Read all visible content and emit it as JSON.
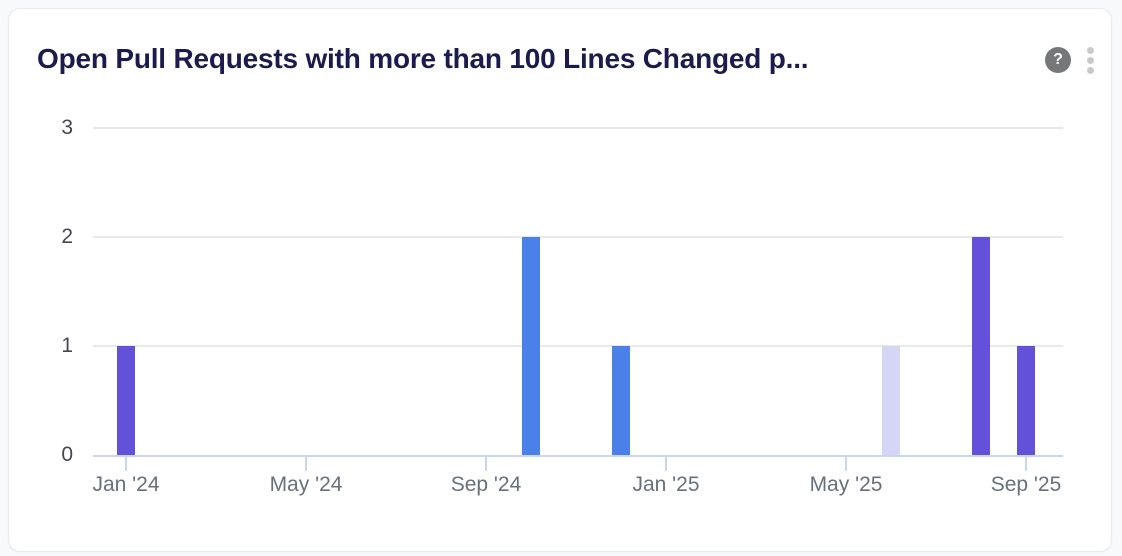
{
  "card": {
    "title": "Open Pull Requests with more than 100 Lines Changed p...",
    "help_icon_glyph": "?",
    "menu_icon": "kebab-vertical"
  },
  "colors": {
    "title_text": "#1b1b4e",
    "card_border": "#e9eaee",
    "gridline": "#e8e9eb",
    "axis_line": "#c9d6ea",
    "y_label_text": "#45484f",
    "x_label_text": "#68707c",
    "bar_purple": "#6451d9",
    "bar_blue": "#4a80e8",
    "bar_lavender": "#d5d6f6",
    "help_icon_bg": "#757779",
    "kebab_dots": "#c8c9cb"
  },
  "chart_data": {
    "type": "bar",
    "title": "Open Pull Requests with more than 100 Lines Changed p...",
    "xlabel": "",
    "ylabel": "",
    "ylim": [
      0,
      3
    ],
    "y_ticks": [
      0,
      1,
      2,
      3
    ],
    "grid": true,
    "legend": false,
    "x_range": "Jan '24 to Sep '25, monthly",
    "x_tick_labels": [
      {
        "label": "Jan '24",
        "month_index": 0
      },
      {
        "label": "May '24",
        "month_index": 4
      },
      {
        "label": "Sep '24",
        "month_index": 8
      },
      {
        "label": "Jan '25",
        "month_index": 12
      },
      {
        "label": "May '25",
        "month_index": 16
      },
      {
        "label": "Sep '25",
        "month_index": 20
      }
    ],
    "bars": [
      {
        "month": "Jan '24",
        "month_index": 0,
        "value": 1,
        "color": "#6451d9"
      },
      {
        "month": "Oct '24",
        "month_index": 9,
        "value": 2,
        "color": "#4a80e8"
      },
      {
        "month": "Dec '24",
        "month_index": 11,
        "value": 1,
        "color": "#4a80e8"
      },
      {
        "month": "Jun '25",
        "month_index": 17,
        "value": 1,
        "color": "#d5d6f6"
      },
      {
        "month": "Aug '25",
        "month_index": 19,
        "value": 2,
        "color": "#6451d9"
      },
      {
        "month": "Sep '25",
        "month_index": 20,
        "value": 1,
        "color": "#6451d9"
      }
    ]
  }
}
